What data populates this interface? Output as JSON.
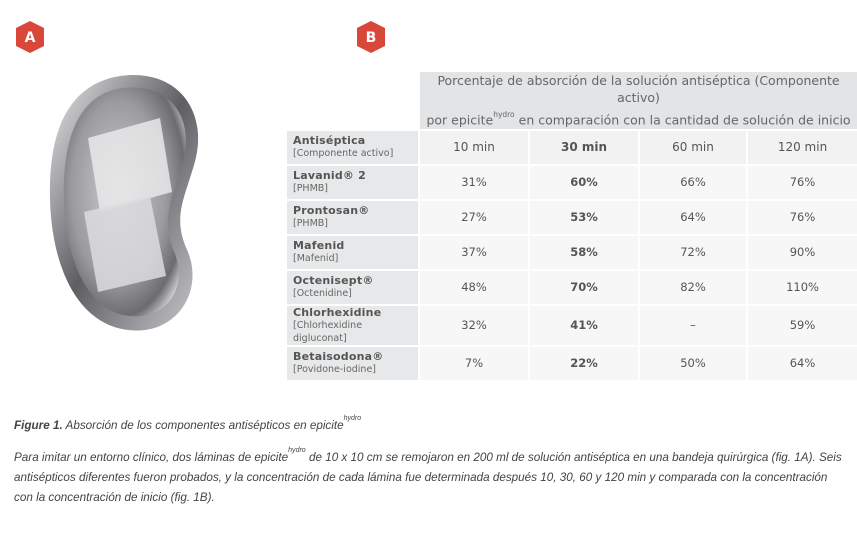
{
  "panels": {
    "a": "A",
    "b": "B"
  },
  "table": {
    "header": {
      "line1": "Porcentaje de absorción de la solución antiséptica (Componente activo)",
      "line2_start": "por epicite",
      "line2_sup": "hydro",
      "line2_end": "en comparación con la cantidad de solución de inicio"
    },
    "corner": {
      "title": "Antiséptica",
      "subtitle": "[Componente activo]"
    },
    "columns": [
      "10 min",
      "30 min",
      "60 min",
      "120 min"
    ],
    "rows": [
      {
        "name": "Lavanid® 2",
        "agent": "[PHMB]",
        "cells": [
          "31%",
          "60%",
          "66%",
          "76%"
        ]
      },
      {
        "name": "Prontosan®",
        "agent": "[PHMB]",
        "cells": [
          "27%",
          "53%",
          "64%",
          "76%"
        ]
      },
      {
        "name": "Mafenid",
        "agent": "[Mafenid]",
        "cells": [
          "37%",
          "58%",
          "72%",
          "90%"
        ]
      },
      {
        "name": "Octenisept®",
        "agent": "[Octenidine]",
        "cells": [
          "48%",
          "70%",
          "82%",
          "110%"
        ]
      },
      {
        "name": "Chlorhexidine",
        "agent": "[Chlorhexidine digluconat]",
        "cells": [
          "32%",
          "41%",
          "–",
          "59%"
        ]
      },
      {
        "name": "Betaisodona®",
        "agent": "[Povidone-iodine]",
        "cells": [
          "7%",
          "22%",
          "50%",
          "64%"
        ]
      }
    ]
  },
  "caption": {
    "label": "Figure 1.",
    "title": "Absorción de los componentes antisépticos en epicite",
    "title_sup": "hydro",
    "body_start": "Para imitar un entorno clínico, dos láminas de epicite",
    "body_sup": "hydro",
    "body_end": "de 10 x 10 cm se remojaron en 200 ml de solución antiséptica en una bandeja quirúrgica (fig. 1A). Seis antisépticos diferentes fueron probados, y la concentración de cada lámina fue determinada después 10, 30, 60 y 120 min y comparada con la concentración con la concentración de inicio (fig. 1B)."
  }
}
